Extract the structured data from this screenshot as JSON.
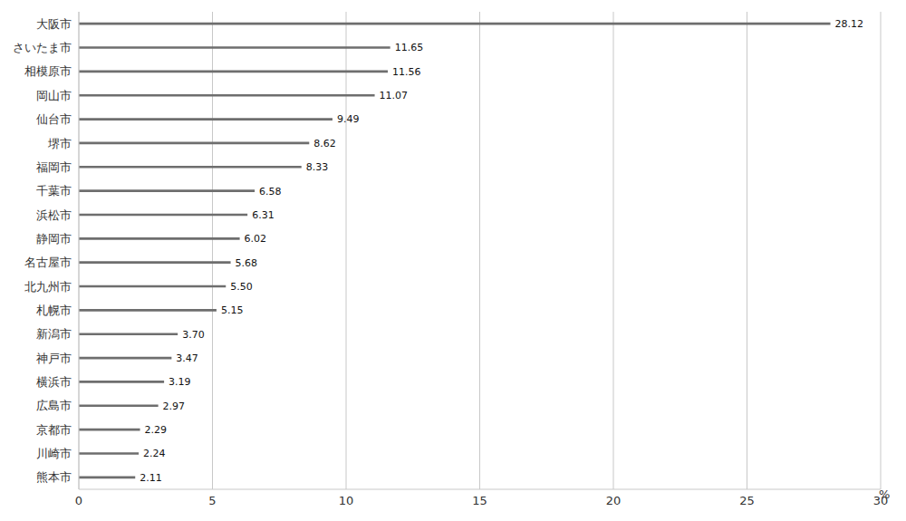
{
  "chart_data": {
    "type": "bar",
    "orientation": "horizontal",
    "categories": [
      "大阪市",
      "さいたま市",
      "相模原市",
      "岡山市",
      "仙台市",
      "堺市",
      "福岡市",
      "千葉市",
      "浜松市",
      "静岡市",
      "名古屋市",
      "北九州市",
      "札幌市",
      "新潟市",
      "神戸市",
      "横浜市",
      "広島市",
      "京都市",
      "川崎市",
      "熊本市"
    ],
    "values": [
      28.12,
      11.65,
      11.56,
      11.07,
      9.49,
      8.62,
      8.33,
      6.58,
      6.31,
      6.02,
      5.68,
      5.5,
      5.15,
      3.7,
      3.47,
      3.19,
      2.97,
      2.29,
      2.24,
      2.11
    ],
    "value_labels": [
      "28.12",
      "11.65",
      "11.56",
      "11.07",
      "9.49",
      "8.62",
      "8.33",
      "6.58",
      "6.31",
      "6.02",
      "5.68",
      "5.50",
      "5.15",
      "3.70",
      "3.47",
      "3.19",
      "2.97",
      "2.29",
      "2.24",
      "2.11"
    ],
    "color": "#6e6e6e",
    "xlim": [
      0,
      30
    ],
    "xticks": [
      0,
      5,
      10,
      15,
      20,
      25,
      30
    ],
    "xlabel": "%",
    "grid": true,
    "data_labels": true
  }
}
